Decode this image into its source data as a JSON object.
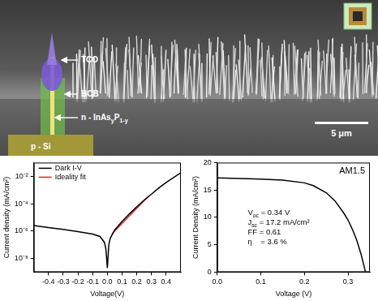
{
  "image": {
    "labels": [
      {
        "segments": [
          {
            "text": "TCO"
          }
        ]
      },
      {
        "segments": [
          {
            "text": "BCB"
          }
        ]
      },
      {
        "segments": [
          {
            "text": "n - InAs"
          },
          {
            "text": "y",
            "sub": true
          },
          {
            "text": "P"
          },
          {
            "text": "1-y",
            "sub": true
          }
        ]
      },
      {
        "segments": [
          {
            "text": "p - Si"
          }
        ]
      }
    ],
    "scale_bar": "5 μm"
  },
  "chart_data": [
    {
      "type": "line",
      "log": "y",
      "grid": false,
      "marker": "none",
      "legend": "upper left",
      "x_label": "Voltage(V)",
      "y_label": "Current density (mA/cm²)",
      "xlim": [
        -0.5,
        0.5
      ],
      "xticks": [
        -0.4,
        -0.3,
        -0.2,
        -0.1,
        {
          "value": 0,
          "label": "0.0"
        },
        0.1,
        0.2,
        0.3,
        0.4
      ],
      "ylim": [
        1e-09,
        0.1
      ],
      "yticks": [
        {
          "value": 1e-08,
          "label": "10⁻⁸"
        },
        {
          "value": 1e-06,
          "label": "10⁻⁶"
        },
        {
          "value": 0.0001,
          "label": "10⁻⁴"
        },
        {
          "value": 0.01,
          "label": "10⁻²"
        }
      ],
      "series": [
        {
          "name": "Dark I-V",
          "color": "#000000",
          "line_style": "solid",
          "x": [
            -0.5,
            -0.4,
            -0.3,
            -0.2,
            -0.1,
            -0.05,
            -0.02,
            -0.01,
            0,
            0.01,
            0.02,
            0.05,
            0.1,
            0.15,
            0.2,
            0.25,
            0.3,
            0.35,
            0.4,
            0.45,
            0.5
          ],
          "values": [
            2.5e-06,
            1.8e-06,
            1.3e-06,
            9e-07,
            6e-07,
            4e-07,
            1.5e-07,
            5e-08,
            2e-09,
            1e-07,
            3e-07,
            1.2e-06,
            5e-06,
            1.8e-05,
            6e-05,
            0.00018,
            0.0005,
            0.0014,
            0.0035,
            0.008,
            0.018
          ]
        },
        {
          "name": "Ideality fit",
          "color": "#e8211d",
          "line_style": "solid",
          "x": [
            0.03,
            0.28
          ],
          "values": [
            6e-07,
            0.00035
          ]
        }
      ]
    },
    {
      "type": "line",
      "grid": false,
      "marker": "none",
      "annotation": "AM1.5",
      "annotations": [
        {
          "segments": [
            {
              "text": "V"
            },
            {
              "text": "oc",
              "sub": true
            },
            {
              "text": " = 0.34 V"
            }
          ]
        },
        {
          "segments": [
            {
              "text": "J"
            },
            {
              "text": "sc",
              "sub": true
            },
            {
              "text": " = 17.2 mA/cm²"
            }
          ]
        },
        {
          "segments": [
            {
              "text": "FF = 0.61"
            }
          ]
        },
        {
          "segments": [
            {
              "text": "η    = 3.6 %"
            }
          ]
        }
      ],
      "x_label": "Voltage (V)",
      "y_label": "Current Density (mA/cm²)",
      "xlim": [
        0,
        0.35
      ],
      "xticks": [
        {
          "value": 0,
          "label": "0.0"
        },
        0.1,
        0.2,
        0.3
      ],
      "ylim": [
        0,
        20
      ],
      "yticks": [
        0,
        5,
        10,
        15,
        20
      ],
      "series": [
        {
          "color": "#000000",
          "line_style": "solid",
          "x": [
            0,
            0.05,
            0.1,
            0.15,
            0.2,
            0.22,
            0.25,
            0.27,
            0.29,
            0.3,
            0.31,
            0.32,
            0.33,
            0.34
          ],
          "values": [
            17.2,
            17.1,
            17.0,
            16.8,
            16.3,
            15.8,
            14.5,
            13.0,
            10.8,
            9.5,
            7.8,
            5.8,
            3.2,
            0.0
          ]
        }
      ]
    }
  ]
}
